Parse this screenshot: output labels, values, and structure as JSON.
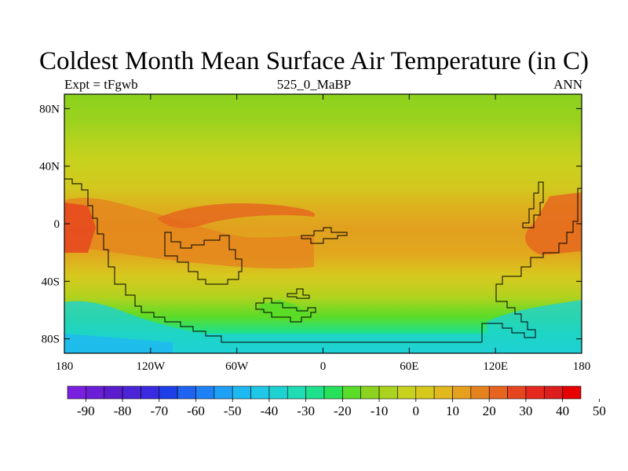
{
  "title": "Coldest Month Mean Surface Air Temperature (in C)",
  "left_label": "Expt = tFgwb",
  "center_label": "525_0_MaBP",
  "right_label": "ANN",
  "map": {
    "longitude_range": [
      -180,
      180
    ],
    "latitude_range": [
      -90,
      90
    ],
    "x_ticks": [
      {
        "value": -180,
        "label": "180"
      },
      {
        "value": -120,
        "label": "120W"
      },
      {
        "value": -60,
        "label": "60W"
      },
      {
        "value": 0,
        "label": "0"
      },
      {
        "value": 60,
        "label": "60E"
      },
      {
        "value": 120,
        "label": "120E"
      },
      {
        "value": 180,
        "label": "180"
      }
    ],
    "y_ticks": [
      {
        "value": 80,
        "label": "80N"
      },
      {
        "value": 40,
        "label": "40N"
      },
      {
        "value": 0,
        "label": "0"
      },
      {
        "value": -40,
        "label": "40S"
      },
      {
        "value": -80,
        "label": "80S"
      }
    ]
  },
  "colorbar": {
    "colors": [
      "#7a1fe0",
      "#6a1ed6",
      "#5a1ccc",
      "#4a24d6",
      "#3a2ae0",
      "#1e3fe8",
      "#1e64f0",
      "#1e82f5",
      "#1ea0f5",
      "#1eb9f0",
      "#1ec8e6",
      "#1ed2d2",
      "#1edcb4",
      "#1ee18c",
      "#28e15a",
      "#5adc28",
      "#8cd21e",
      "#aad21e",
      "#c8d21e",
      "#d7c81e",
      "#e1b91e",
      "#e6a01e",
      "#e6821e",
      "#e6641e",
      "#e6461e",
      "#e6281e",
      "#dc1e1e",
      "#e60000"
    ],
    "labels": [
      "-90",
      "-80",
      "-70",
      "-60",
      "-50",
      "-40",
      "-30",
      "-20",
      "-10",
      "0",
      "10",
      "20",
      "30",
      "40",
      "50"
    ]
  }
}
